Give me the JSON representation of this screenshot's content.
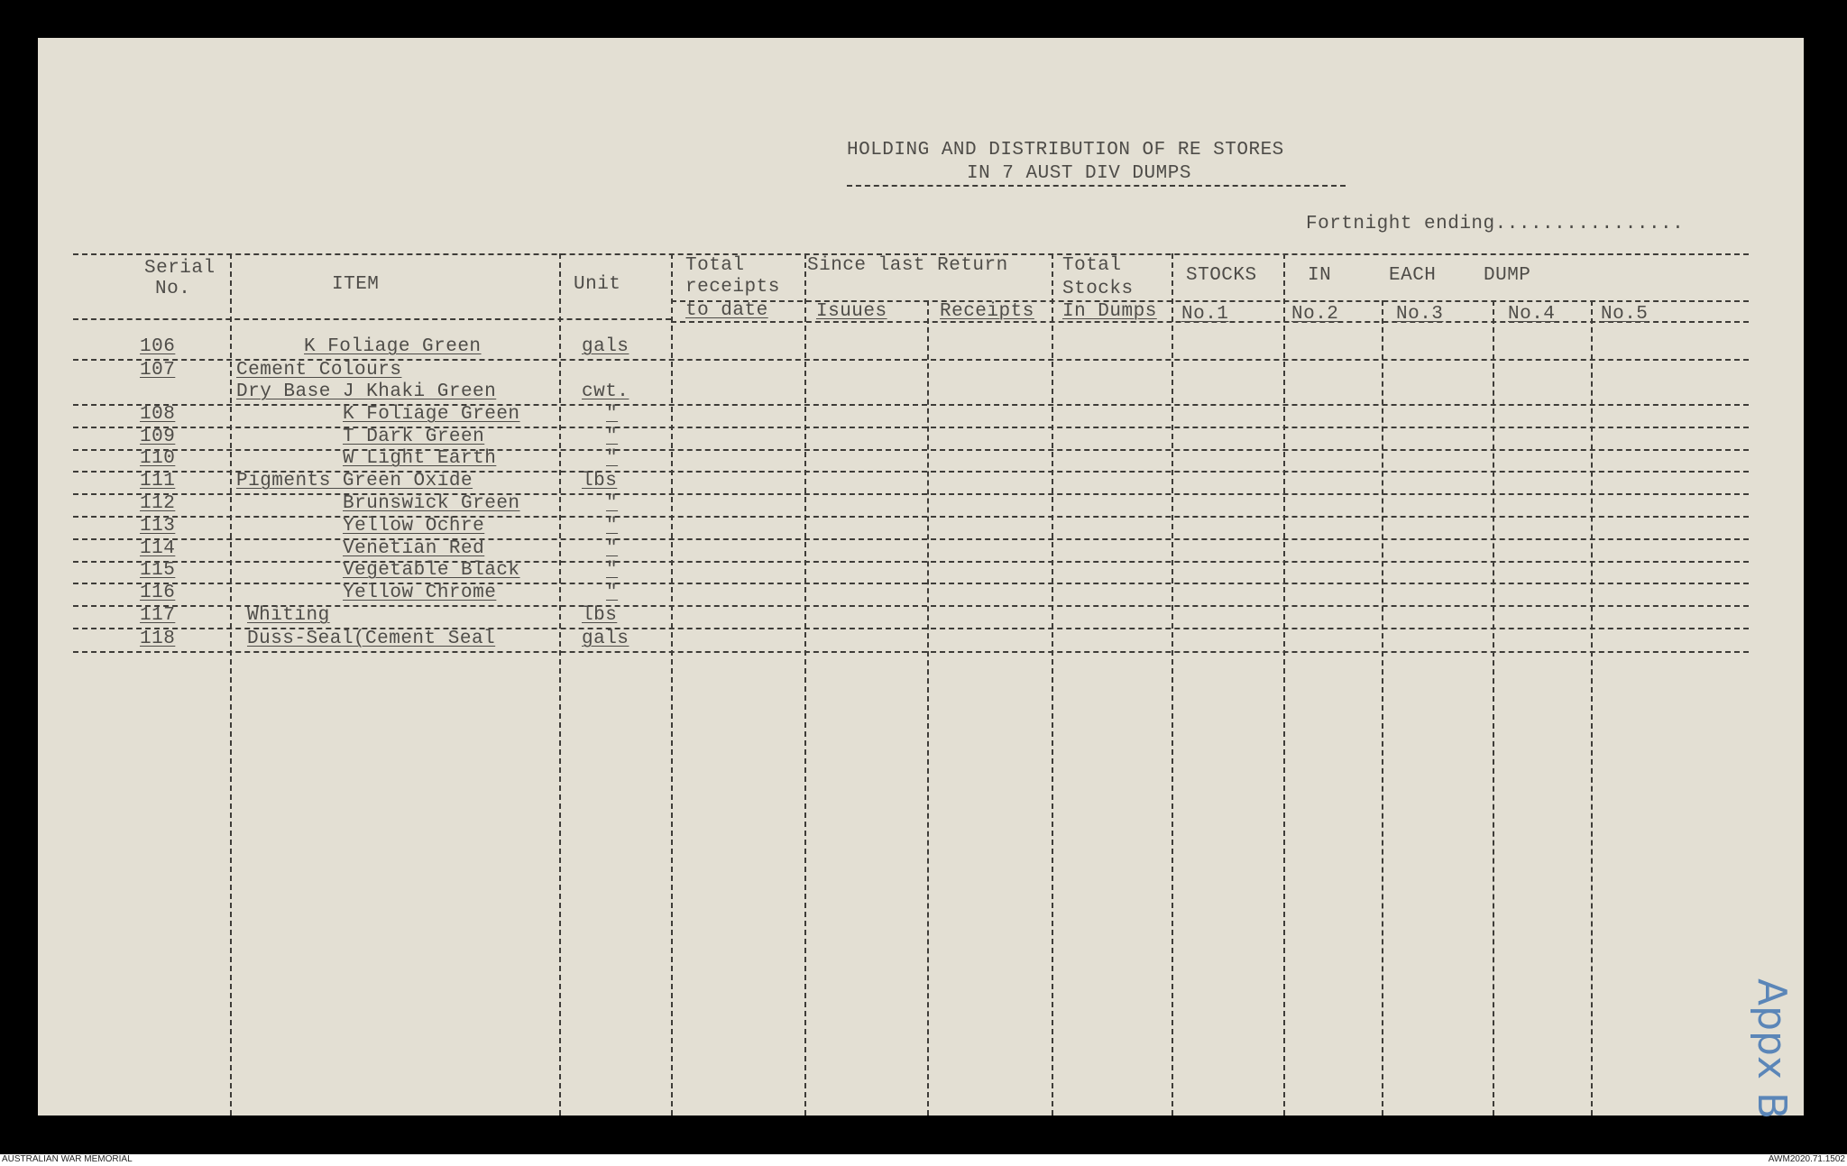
{
  "document": {
    "title_line1": "HOLDING AND DISTRIBUTION OF RE STORES",
    "title_line2": "IN 7 AUST DIV DUMPS",
    "fortnight": "Fortnight ending................",
    "annotation": "Appx B"
  },
  "table": {
    "headers": {
      "serial_1": "Serial",
      "serial_2": "No.",
      "item": "ITEM",
      "unit": "Unit",
      "total_receipts_1": "Total",
      "total_receipts_2": "receipts",
      "total_receipts_3": "to date",
      "since_last_return": "Since last Return",
      "issues": "Isuues",
      "receipts": "Receipts",
      "total_stocks_1": "Total",
      "total_stocks_2": "Stocks",
      "total_stocks_3": "In Dumps",
      "stocks": "STOCKS",
      "in": "IN",
      "each": "EACH",
      "dump": "DUMP",
      "no1": "No.1",
      "no2": "No.2",
      "no3": "No.3",
      "no4": "No.4",
      "no5": "No.5"
    },
    "rows": [
      {
        "serial": "106",
        "item": "K Foliage Green",
        "unit": "gals"
      },
      {
        "serial": "107",
        "item": "Cement Colours",
        "unit": ""
      },
      {
        "serial": "",
        "item": "Dry Base J Khaki Green",
        "unit": "cwt."
      },
      {
        "serial": "108",
        "item": "K Foliage Green",
        "unit": "\""
      },
      {
        "serial": "109",
        "item": "T Dark Green",
        "unit": "\""
      },
      {
        "serial": "110",
        "item": "W Light Earth",
        "unit": "\""
      },
      {
        "serial": "111",
        "item": "Pigments Green Oxide",
        "unit": "lbs"
      },
      {
        "serial": "112",
        "item": "Brunswick Green",
        "unit": "\""
      },
      {
        "serial": "113",
        "item": "Yellow Ochre",
        "unit": "\""
      },
      {
        "serial": "114",
        "item": "Venetian Red",
        "unit": "\""
      },
      {
        "serial": "115",
        "item": "Vegetable Black",
        "unit": "\""
      },
      {
        "serial": "116",
        "item": "Yellow Chrome",
        "unit": "\""
      },
      {
        "serial": "117",
        "item": "Whiting",
        "unit": "lbs"
      },
      {
        "serial": "118",
        "item": "Duss-Seal(Cement Seal",
        "unit": "gals"
      }
    ]
  },
  "footer": {
    "left": "AUSTRALIAN WAR MEMORIAL",
    "right": "AWM2020.71.1502"
  }
}
